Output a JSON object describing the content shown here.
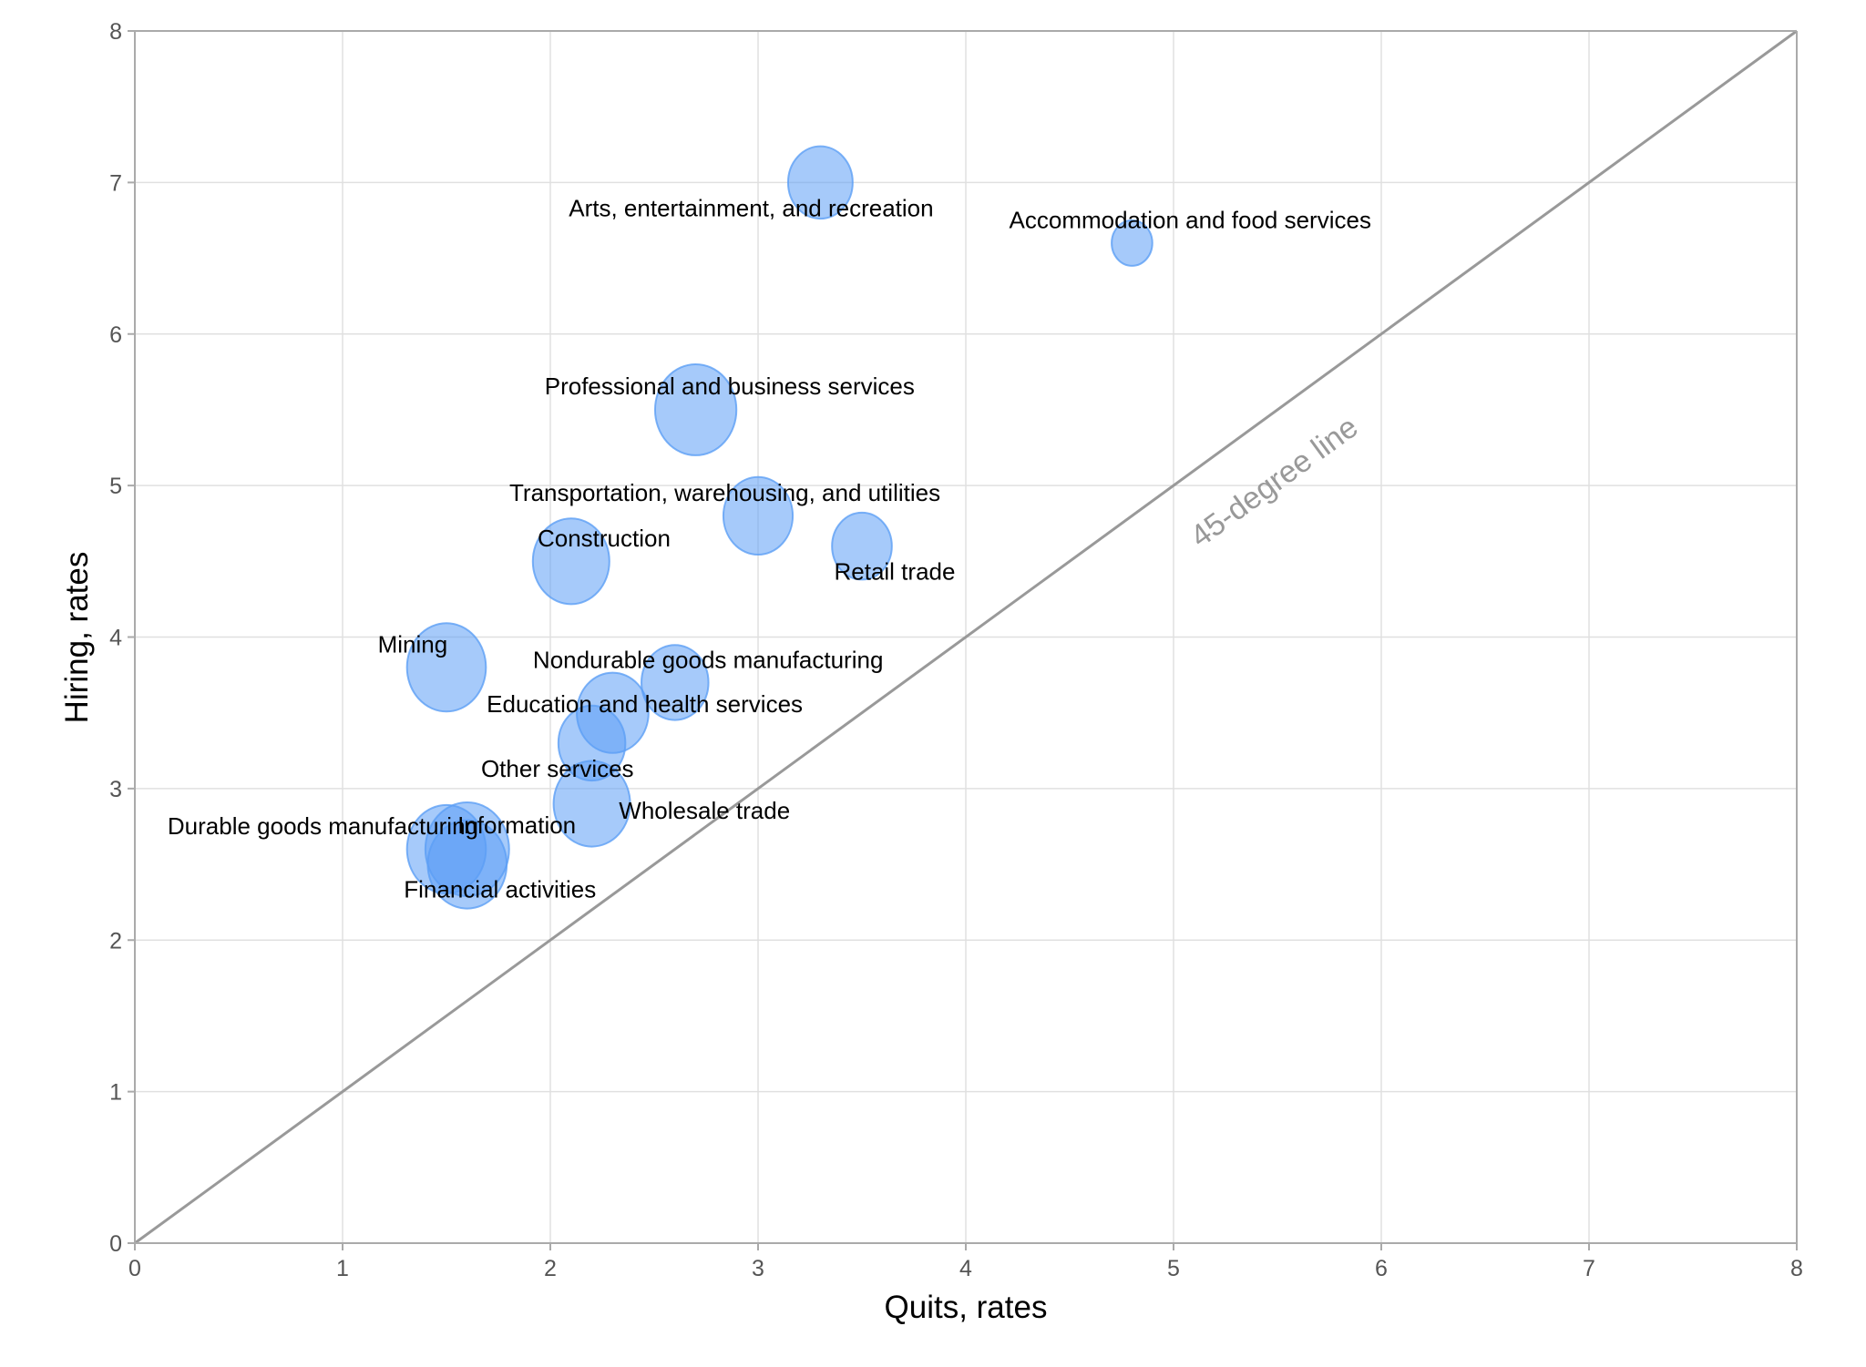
{
  "chart_data": {
    "type": "scatter",
    "subtype": "bubble",
    "title": "",
    "xlabel": "Quits, rates",
    "ylabel": "Hiring, rates",
    "xlim": [
      0,
      8
    ],
    "ylim": [
      0,
      8
    ],
    "xticks": [
      "0",
      "1",
      "2",
      "3",
      "4",
      "5",
      "6",
      "7",
      "8"
    ],
    "yticks": [
      "0",
      "1",
      "2",
      "3",
      "4",
      "5",
      "6",
      "7",
      "8"
    ],
    "grid": true,
    "reference_line": {
      "label": "45-degree line",
      "from": [
        0,
        0
      ],
      "to": [
        8,
        8
      ],
      "color": "#999999"
    },
    "bubble_color": "#5c9ff5",
    "points": [
      {
        "label": "Arts, entertainment, and recreation",
        "x": 3.3,
        "y": 7.0,
        "size": 27
      },
      {
        "label": "Accommodation and food services",
        "x": 4.8,
        "y": 6.6,
        "size": 17
      },
      {
        "label": "Professional and business services",
        "x": 2.7,
        "y": 5.5,
        "size": 34
      },
      {
        "label": "Transportation, warehousing, and utilities",
        "x": 3.0,
        "y": 4.8,
        "size": 29
      },
      {
        "label": "Retail trade",
        "x": 3.5,
        "y": 4.6,
        "size": 25
      },
      {
        "label": "Construction",
        "x": 2.1,
        "y": 4.5,
        "size": 32
      },
      {
        "label": "Mining",
        "x": 1.5,
        "y": 3.8,
        "size": 33
      },
      {
        "label": "Nondurable goods manufacturing",
        "x": 2.6,
        "y": 3.7,
        "size": 28
      },
      {
        "label": "Education and health services",
        "x": 2.3,
        "y": 3.5,
        "size": 30
      },
      {
        "label": "Other services",
        "x": 2.2,
        "y": 3.3,
        "size": 28
      },
      {
        "label": "Wholesale trade",
        "x": 2.2,
        "y": 2.9,
        "size": 32
      },
      {
        "label": "Durable goods manufacturing",
        "x": 1.5,
        "y": 2.6,
        "size": 33
      },
      {
        "label": "Information",
        "x": 1.6,
        "y": 2.6,
        "size": 35
      },
      {
        "label": "Financial activities",
        "x": 1.6,
        "y": 2.5,
        "size": 33
      }
    ]
  }
}
